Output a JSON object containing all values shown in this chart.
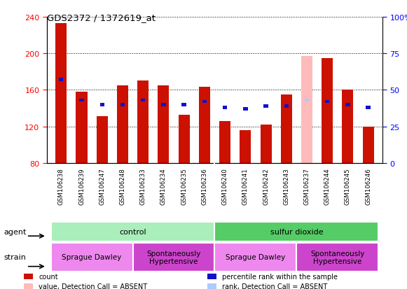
{
  "title": "GDS2372 / 1372619_at",
  "samples": [
    "GSM106238",
    "GSM106239",
    "GSM106247",
    "GSM106248",
    "GSM106233",
    "GSM106234",
    "GSM106235",
    "GSM106236",
    "GSM106240",
    "GSM106241",
    "GSM106242",
    "GSM106243",
    "GSM106237",
    "GSM106244",
    "GSM106245",
    "GSM106246"
  ],
  "count_values": [
    233,
    158,
    131,
    165,
    170,
    165,
    133,
    163,
    126,
    116,
    122,
    155,
    197,
    195,
    160,
    120
  ],
  "rank_values": [
    57,
    43,
    40,
    40,
    43,
    40,
    40,
    42,
    38,
    37,
    39,
    39,
    43,
    42,
    40,
    38
  ],
  "absent_flags": [
    false,
    false,
    false,
    false,
    false,
    false,
    false,
    false,
    false,
    false,
    false,
    false,
    true,
    false,
    false,
    false
  ],
  "bar_bottom": 80,
  "ylim_left": [
    80,
    240
  ],
  "ylim_right": [
    0,
    100
  ],
  "yticks_left": [
    80,
    120,
    160,
    200,
    240
  ],
  "yticks_right": [
    0,
    25,
    50,
    75,
    100
  ],
  "right_tick_labels": [
    "0",
    "25",
    "50",
    "75",
    "100%"
  ],
  "color_count": "#cc1100",
  "color_count_absent": "#ffbbbb",
  "color_rank": "#1111cc",
  "color_rank_absent": "#aaccff",
  "agent_groups": [
    {
      "label": "control",
      "start": 0,
      "end": 8,
      "color": "#aaeebb"
    },
    {
      "label": "sulfur dioxide",
      "start": 8,
      "end": 16,
      "color": "#55cc66"
    }
  ],
  "strain_groups": [
    {
      "label": "Sprague Dawley",
      "start": 0,
      "end": 4,
      "color": "#ee88ee"
    },
    {
      "label": "Spontaneously\nHypertensive",
      "start": 4,
      "end": 8,
      "color": "#cc44cc"
    },
    {
      "label": "Sprague Dawley",
      "start": 8,
      "end": 12,
      "color": "#ee88ee"
    },
    {
      "label": "Spontaneously\nHypertensive",
      "start": 12,
      "end": 16,
      "color": "#cc44cc"
    }
  ],
  "legend_items": [
    {
      "label": "count",
      "color": "#cc1100"
    },
    {
      "label": "percentile rank within the sample",
      "color": "#1111cc"
    },
    {
      "label": "value, Detection Call = ABSENT",
      "color": "#ffbbbb"
    },
    {
      "label": "rank, Detection Call = ABSENT",
      "color": "#aaccff"
    }
  ],
  "bar_width": 0.55,
  "agent_label": "agent",
  "strain_label": "strain",
  "xtick_bg_color": "#cccccc",
  "fig_bg": "#ffffff"
}
